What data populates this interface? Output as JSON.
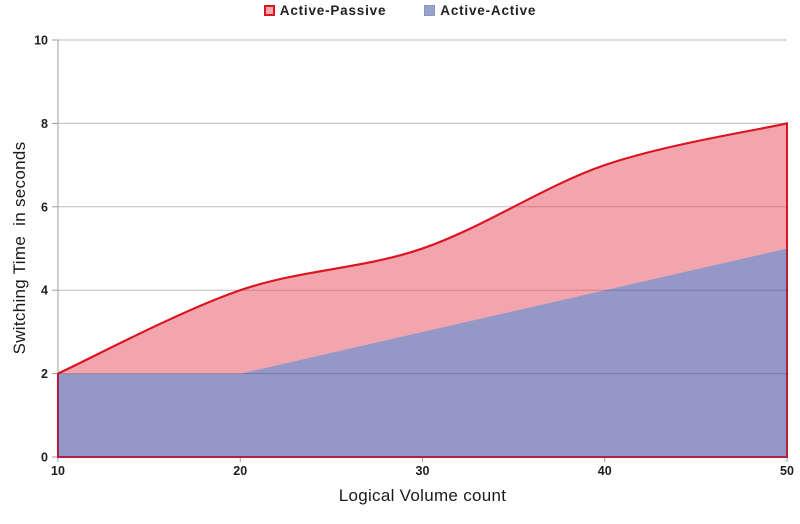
{
  "chart_data": {
    "type": "area",
    "title": "",
    "xlabel": "Logical Volume count",
    "ylabel": "Switching Time  in seconds",
    "x": [
      10,
      20,
      30,
      40,
      50
    ],
    "series": [
      {
        "name": "Active-Passive",
        "values": [
          2,
          4,
          5,
          7,
          8
        ],
        "smoothed": true,
        "line_color": "#DD1422",
        "fill": "rgba(226,55,70,0.45)"
      },
      {
        "name": "Active-Active",
        "values": [
          2,
          2,
          3,
          4,
          5
        ],
        "smoothed": false,
        "line_color": "none",
        "fill": "rgba(62,68,151,0.55)"
      }
    ],
    "xlim": [
      10,
      50
    ],
    "ylim": [
      0,
      10
    ],
    "xticks": [
      10,
      20,
      30,
      40,
      50
    ],
    "yticks": [
      0,
      2,
      4,
      6,
      8,
      10
    ],
    "grid": true,
    "legend_position": "top-center"
  },
  "legend": {
    "items": [
      {
        "label": "Active-Passive",
        "marker_fill": "#F4A9B1",
        "marker_border": "#DD1422",
        "marker_border_width": 2
      },
      {
        "label": "Active-Active",
        "marker_fill": "#99A2CB",
        "marker_border": "#8B94C4",
        "marker_border_width": 1
      }
    ]
  },
  "style_colors": {
    "gridline": "#BDBDBD",
    "axis_line": "#9E9E9E",
    "tick": "#9E9E9E",
    "tick_label": "#1F1F1F",
    "axis_title": "#1A1A1A",
    "legend_text": "#212121",
    "background": "#FFFFFF"
  }
}
